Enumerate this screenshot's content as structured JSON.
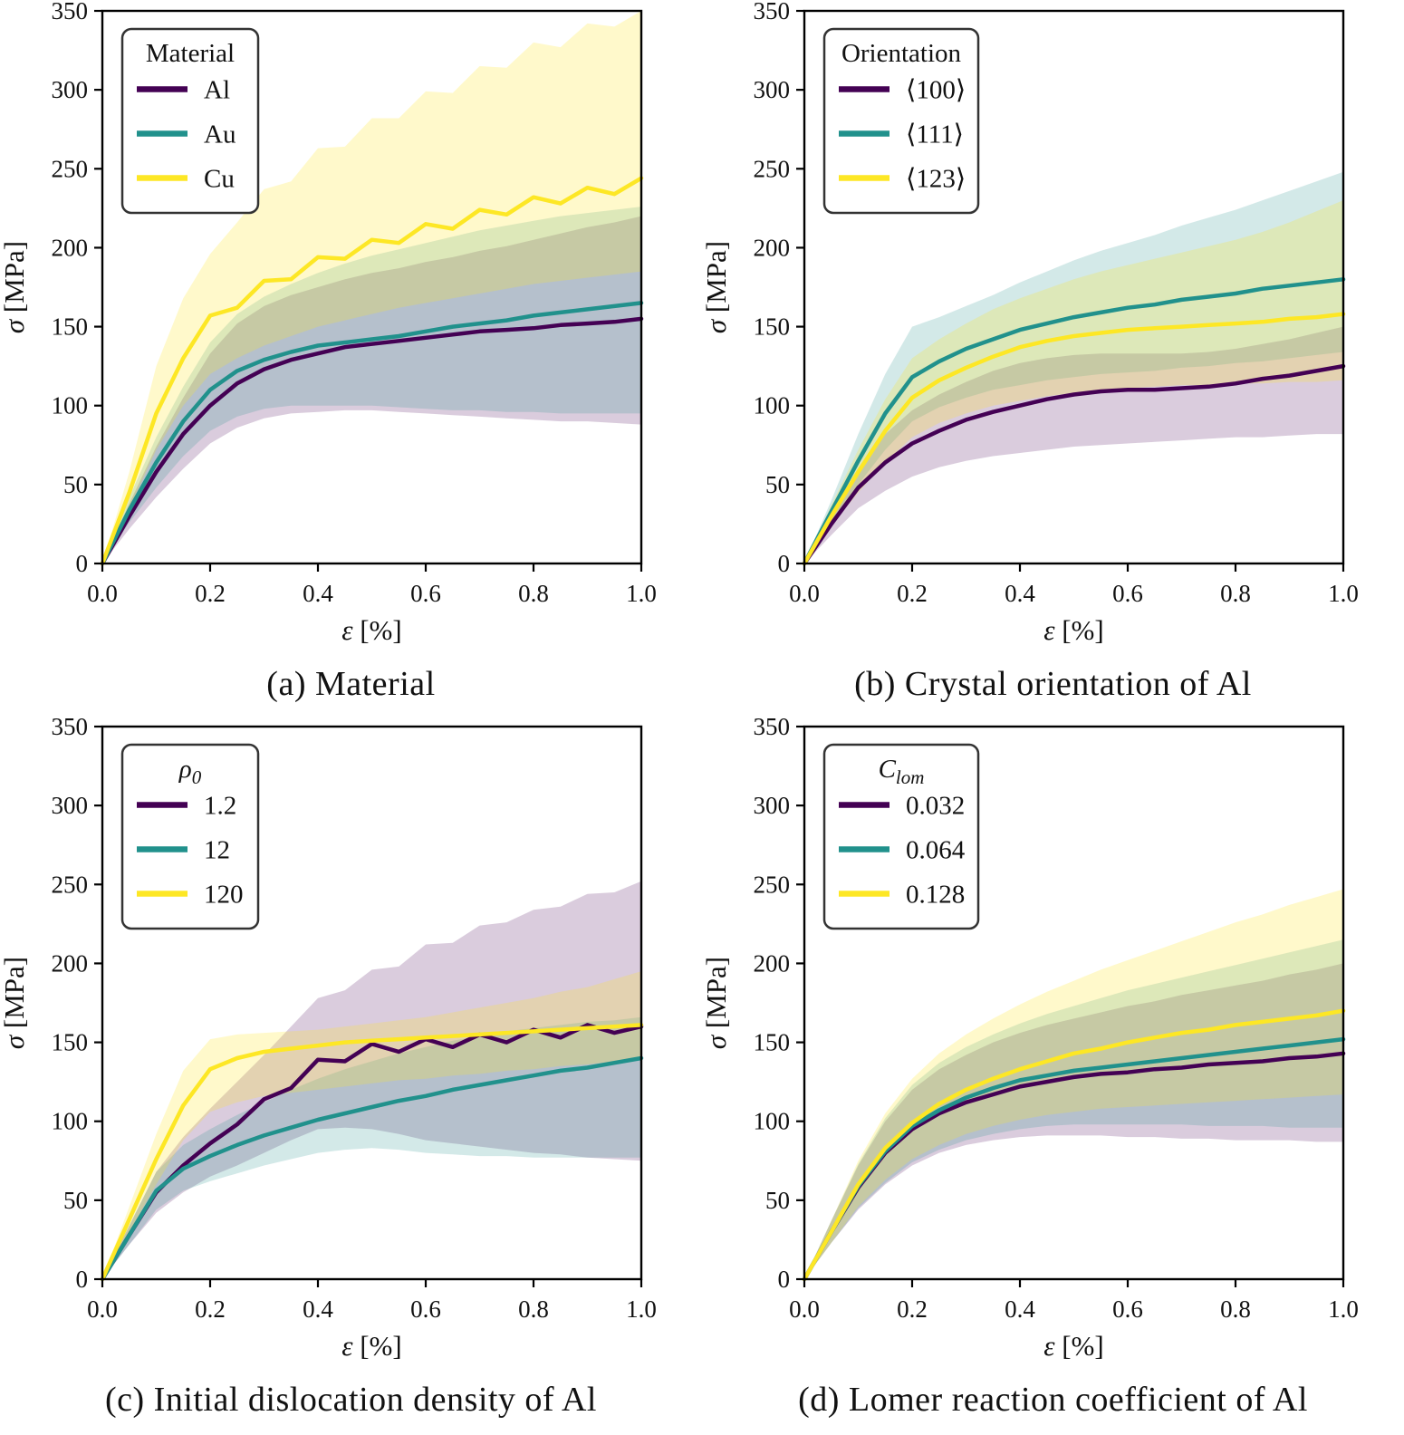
{
  "page": {
    "background": "#ffffff"
  },
  "colors": {
    "purple": "#440154",
    "teal": "#21918c",
    "yellow": "#fde725",
    "band_alpha_purple": 0.2,
    "band_alpha_teal": 0.2,
    "band_alpha_yellow": 0.24,
    "spine": "#000000",
    "legend_border": "#333333"
  },
  "axes": {
    "xlabel_sym": "ε",
    "xlabel_rest": " [%]",
    "ylabel_sym": "σ",
    "ylabel_rest": " [MPa]",
    "xlim": [
      0,
      1
    ],
    "ylim": [
      0,
      350
    ],
    "xtick_values": [
      0,
      0.2,
      0.4,
      0.6,
      0.8,
      1.0
    ],
    "xtick_labels": [
      "0.0",
      "0.2",
      "0.4",
      "0.6",
      "0.8",
      "1.0"
    ],
    "ytick_values": [
      0,
      50,
      100,
      150,
      200,
      250,
      300,
      350
    ],
    "ytick_labels": [
      "0",
      "50",
      "100",
      "150",
      "200",
      "250",
      "300",
      "350"
    ]
  },
  "chart_data": [
    {
      "id": "a",
      "type": "line",
      "caption": "(a) Material",
      "legend": {
        "title": "Material",
        "title_italic": false,
        "title_sub": ""
      },
      "x": [
        0,
        0.05,
        0.1,
        0.15,
        0.2,
        0.25,
        0.3,
        0.35,
        0.4,
        0.45,
        0.5,
        0.55,
        0.6,
        0.65,
        0.7,
        0.75,
        0.8,
        0.85,
        0.9,
        0.95,
        1.0
      ],
      "series": [
        {
          "label": "Al",
          "color_key": "purple",
          "values": [
            0,
            30,
            58,
            82,
            100,
            114,
            123,
            129,
            133,
            137,
            139,
            141,
            143,
            145,
            147,
            148,
            149,
            151,
            152,
            153,
            155
          ],
          "lo": [
            0,
            22,
            42,
            60,
            76,
            86,
            92,
            95,
            96,
            97,
            97,
            96,
            95,
            94,
            93,
            92,
            91,
            90,
            90,
            89,
            88
          ],
          "hi": [
            0,
            38,
            74,
            105,
            133,
            152,
            163,
            170,
            175,
            180,
            184,
            187,
            191,
            194,
            198,
            201,
            205,
            209,
            213,
            216,
            220
          ]
        },
        {
          "label": "Au",
          "color_key": "teal",
          "values": [
            0,
            34,
            64,
            90,
            110,
            122,
            129,
            134,
            138,
            140,
            142,
            144,
            147,
            150,
            152,
            154,
            157,
            159,
            161,
            163,
            165
          ],
          "lo": [
            0,
            26,
            48,
            68,
            84,
            93,
            98,
            100,
            100,
            100,
            100,
            99,
            98,
            97,
            97,
            96,
            96,
            95,
            95,
            95,
            95
          ],
          "hi": [
            0,
            42,
            80,
            112,
            140,
            158,
            169,
            177,
            184,
            190,
            195,
            199,
            203,
            207,
            211,
            214,
            217,
            220,
            222,
            224,
            226
          ]
        },
        {
          "label": "Cu",
          "color_key": "yellow",
          "values": [
            0,
            45,
            95,
            130,
            157,
            162,
            179,
            180,
            194,
            193,
            205,
            203,
            215,
            212,
            224,
            221,
            232,
            228,
            238,
            234,
            244
          ],
          "lo": [
            0,
            35,
            72,
            100,
            120,
            130,
            138,
            144,
            150,
            154,
            158,
            162,
            165,
            168,
            171,
            174,
            177,
            179,
            181,
            183,
            185
          ],
          "hi": [
            0,
            58,
            125,
            168,
            196,
            216,
            237,
            242,
            263,
            264,
            282,
            282,
            299,
            298,
            315,
            314,
            330,
            327,
            342,
            340,
            350
          ]
        }
      ]
    },
    {
      "id": "b",
      "type": "line",
      "caption": "(b) Crystal orientation of Al",
      "legend": {
        "title": "Orientation",
        "title_italic": false,
        "title_sub": ""
      },
      "x": [
        0,
        0.05,
        0.1,
        0.15,
        0.2,
        0.25,
        0.3,
        0.35,
        0.4,
        0.45,
        0.5,
        0.55,
        0.6,
        0.65,
        0.7,
        0.75,
        0.8,
        0.85,
        0.9,
        0.95,
        1.0
      ],
      "series": [
        {
          "label": "⟨100⟩",
          "color_key": "purple",
          "values": [
            0,
            25,
            48,
            64,
            76,
            84,
            91,
            96,
            100,
            104,
            107,
            109,
            110,
            110,
            111,
            112,
            114,
            117,
            119,
            122,
            125
          ],
          "lo": [
            0,
            18,
            35,
            46,
            55,
            61,
            65,
            68,
            70,
            72,
            74,
            75,
            76,
            77,
            78,
            79,
            80,
            80,
            81,
            82,
            82
          ],
          "hi": [
            0,
            32,
            60,
            82,
            97,
            107,
            115,
            122,
            127,
            130,
            132,
            133,
            133,
            133,
            133,
            134,
            136,
            139,
            142,
            146,
            150
          ]
        },
        {
          "label": "⟨111⟩",
          "color_key": "teal",
          "values": [
            0,
            33,
            65,
            95,
            118,
            128,
            136,
            142,
            148,
            152,
            156,
            159,
            162,
            164,
            167,
            169,
            171,
            174,
            176,
            178,
            180
          ],
          "lo": [
            0,
            26,
            50,
            72,
            90,
            99,
            105,
            110,
            113,
            116,
            118,
            120,
            121,
            122,
            124,
            125,
            127,
            128,
            130,
            132,
            134
          ],
          "hi": [
            0,
            40,
            82,
            120,
            150,
            156,
            163,
            170,
            178,
            185,
            192,
            198,
            203,
            208,
            214,
            219,
            224,
            230,
            236,
            242,
            248
          ]
        },
        {
          "label": "⟨123⟩",
          "color_key": "yellow",
          "values": [
            0,
            30,
            58,
            84,
            105,
            116,
            124,
            131,
            137,
            141,
            144,
            146,
            148,
            149,
            150,
            151,
            152,
            153,
            155,
            156,
            158
          ],
          "lo": [
            0,
            24,
            45,
            64,
            80,
            89,
            95,
            100,
            103,
            106,
            108,
            110,
            111,
            112,
            113,
            113,
            114,
            114,
            115,
            115,
            116
          ],
          "hi": [
            0,
            37,
            72,
            104,
            130,
            142,
            152,
            161,
            168,
            174,
            180,
            185,
            189,
            193,
            197,
            201,
            205,
            210,
            216,
            223,
            230
          ]
        }
      ]
    },
    {
      "id": "c",
      "type": "line",
      "caption": "(c) Initial dislocation density of Al",
      "legend": {
        "title": "ρ",
        "title_italic": true,
        "title_sub": "0"
      },
      "x": [
        0,
        0.05,
        0.1,
        0.15,
        0.2,
        0.25,
        0.3,
        0.35,
        0.4,
        0.45,
        0.5,
        0.55,
        0.6,
        0.65,
        0.7,
        0.75,
        0.8,
        0.85,
        0.9,
        0.95,
        1.0
      ],
      "series": [
        {
          "label": "1.2",
          "color_key": "purple",
          "values": [
            0,
            28,
            55,
            72,
            86,
            98,
            114,
            121,
            139,
            138,
            149,
            144,
            152,
            147,
            155,
            150,
            158,
            153,
            161,
            156,
            160
          ],
          "lo": [
            0,
            22,
            42,
            55,
            65,
            72,
            80,
            88,
            95,
            96,
            95,
            92,
            88,
            86,
            84,
            82,
            80,
            79,
            77,
            76,
            75
          ],
          "hi": [
            0,
            34,
            68,
            90,
            108,
            125,
            142,
            160,
            178,
            183,
            196,
            198,
            212,
            213,
            224,
            226,
            234,
            236,
            244,
            245,
            252
          ]
        },
        {
          "label": "12",
          "color_key": "teal",
          "values": [
            0,
            28,
            56,
            70,
            78,
            85,
            91,
            96,
            101,
            105,
            109,
            113,
            116,
            120,
            123,
            126,
            129,
            132,
            134,
            137,
            140
          ],
          "lo": [
            0,
            22,
            44,
            56,
            62,
            67,
            72,
            76,
            80,
            82,
            83,
            82,
            80,
            79,
            78,
            78,
            77,
            77,
            77,
            77,
            77
          ],
          "hi": [
            0,
            34,
            68,
            85,
            95,
            104,
            112,
            120,
            127,
            133,
            138,
            143,
            147,
            151,
            154,
            157,
            159,
            161,
            163,
            164,
            166
          ]
        },
        {
          "label": "120",
          "color_key": "yellow",
          "values": [
            0,
            38,
            76,
            110,
            133,
            140,
            144,
            146,
            148,
            150,
            151,
            152,
            153,
            154,
            155,
            156,
            157,
            158,
            159,
            160,
            161
          ],
          "lo": [
            0,
            30,
            60,
            88,
            106,
            112,
            116,
            118,
            120,
            122,
            124,
            126,
            127,
            129,
            130,
            132,
            133,
            135,
            136,
            138,
            140
          ],
          "hi": [
            0,
            46,
            92,
            132,
            152,
            155,
            156,
            157,
            158,
            160,
            162,
            164,
            166,
            169,
            172,
            175,
            178,
            182,
            185,
            190,
            195
          ]
        }
      ]
    },
    {
      "id": "d",
      "type": "line",
      "caption": "(d) Lomer reaction coefficient of Al",
      "legend": {
        "title": "C",
        "title_italic": true,
        "title_sub": "lom"
      },
      "x": [
        0,
        0.05,
        0.1,
        0.15,
        0.2,
        0.25,
        0.3,
        0.35,
        0.4,
        0.45,
        0.5,
        0.55,
        0.6,
        0.65,
        0.7,
        0.75,
        0.8,
        0.85,
        0.9,
        0.95,
        1.0
      ],
      "series": [
        {
          "label": "0.032",
          "color_key": "purple",
          "values": [
            0,
            30,
            58,
            80,
            95,
            105,
            112,
            117,
            122,
            125,
            128,
            130,
            131,
            133,
            134,
            136,
            137,
            138,
            140,
            141,
            143
          ],
          "lo": [
            0,
            23,
            44,
            60,
            72,
            80,
            85,
            88,
            90,
            91,
            91,
            91,
            90,
            90,
            89,
            89,
            88,
            88,
            88,
            87,
            87
          ],
          "hi": [
            0,
            37,
            72,
            100,
            120,
            133,
            142,
            150,
            156,
            161,
            165,
            169,
            173,
            176,
            180,
            183,
            186,
            189,
            193,
            196,
            200
          ]
        },
        {
          "label": "0.064",
          "color_key": "teal",
          "values": [
            0,
            30,
            59,
            81,
            97,
            107,
            115,
            121,
            126,
            129,
            132,
            134,
            136,
            138,
            140,
            142,
            144,
            146,
            148,
            150,
            152
          ],
          "lo": [
            0,
            23,
            45,
            61,
            74,
            82,
            88,
            92,
            95,
            97,
            98,
            98,
            98,
            98,
            98,
            97,
            97,
            97,
            96,
            96,
            96
          ],
          "hi": [
            0,
            37,
            73,
            102,
            123,
            137,
            147,
            155,
            162,
            168,
            173,
            178,
            183,
            187,
            191,
            195,
            199,
            203,
            207,
            211,
            215
          ]
        },
        {
          "label": "0.128",
          "color_key": "yellow",
          "values": [
            0,
            30,
            60,
            83,
            99,
            111,
            120,
            127,
            133,
            138,
            143,
            146,
            150,
            153,
            156,
            158,
            161,
            163,
            165,
            167,
            170
          ],
          "lo": [
            0,
            23,
            46,
            63,
            76,
            85,
            92,
            97,
            101,
            104,
            106,
            108,
            109,
            110,
            111,
            112,
            113,
            114,
            115,
            116,
            117
          ],
          "hi": [
            0,
            37,
            75,
            105,
            127,
            143,
            155,
            165,
            174,
            182,
            189,
            196,
            202,
            208,
            214,
            220,
            226,
            231,
            237,
            242,
            247
          ]
        }
      ]
    }
  ]
}
